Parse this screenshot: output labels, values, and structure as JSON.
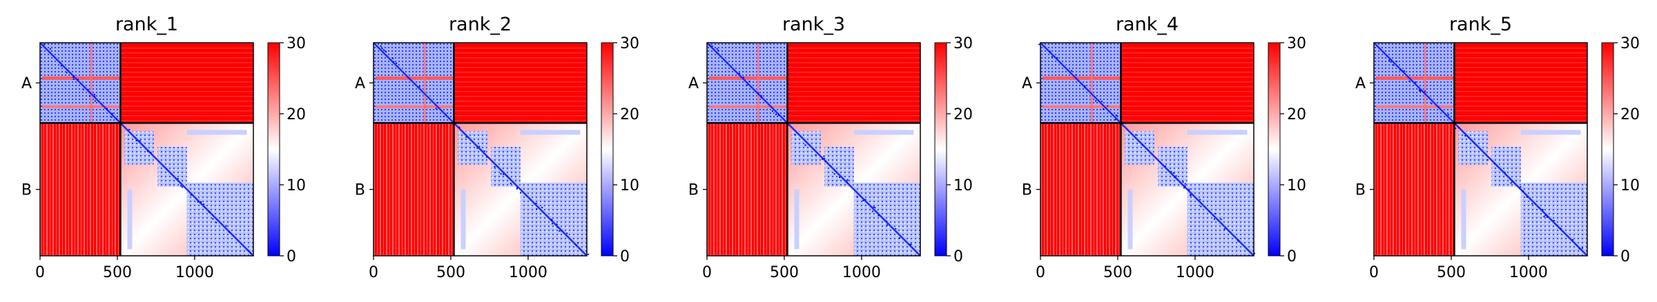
{
  "chart_data": {
    "type": "heatmap",
    "n_residues": 1380,
    "chain_boundary": 520,
    "chains": [
      {
        "label": "A",
        "start": 0,
        "end": 520
      },
      {
        "label": "B",
        "start": 520,
        "end": 1380
      }
    ],
    "colormap": {
      "low": "#0000ff",
      "mid": "#ffffff",
      "high": "#ff0000"
    },
    "colorbar": {
      "min": 0,
      "max": 30,
      "ticks": [
        "0",
        "10",
        "20",
        "30"
      ]
    },
    "x_ticks": [
      "0",
      "500",
      "1000"
    ],
    "x_tick_values": [
      0,
      500,
      1000
    ],
    "panels": [
      {
        "title": "rank_1"
      },
      {
        "title": "rank_2"
      },
      {
        "title": "rank_3"
      },
      {
        "title": "rank_4"
      },
      {
        "title": "rank_5"
      }
    ]
  }
}
